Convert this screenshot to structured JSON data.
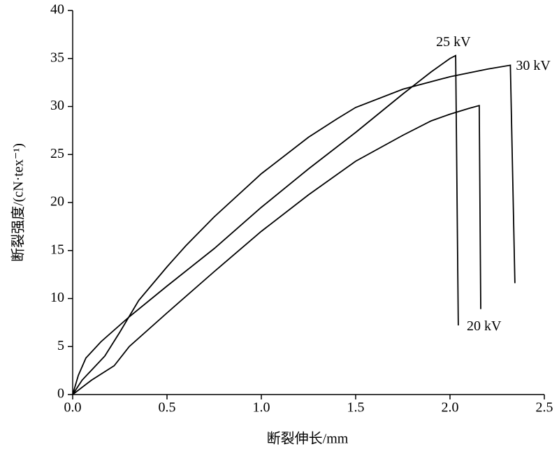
{
  "chart_data": {
    "type": "line",
    "xlabel": "断裂伸长/mm",
    "ylabel": "断裂强度/(cN·tex⁻¹)",
    "xlim": [
      0,
      2.5
    ],
    "ylim": [
      0,
      40
    ],
    "xticks": [
      {
        "value": 0,
        "label": "0.0"
      },
      0.5,
      {
        "value": 1,
        "label": "1.0"
      },
      1.5,
      {
        "value": 2,
        "label": "2.0"
      },
      2.5
    ],
    "yticks": [
      0,
      5,
      10,
      15,
      20,
      25,
      30,
      35,
      40
    ],
    "series": [
      {
        "name": "25 kV",
        "color": "#000000",
        "x": [
          0,
          0.03,
          0.07,
          0.15,
          0.3,
          0.5,
          0.75,
          1.0,
          1.25,
          1.5,
          1.75,
          1.9,
          2.0,
          2.03,
          2.044
        ],
        "values": [
          0,
          2,
          3.8,
          5.5,
          8.1,
          11.3,
          15.2,
          19.5,
          23.5,
          27.3,
          31.3,
          33.6,
          35,
          35.3,
          7.2
        ]
      },
      {
        "name": "30 kV",
        "color": "#000000",
        "x": [
          0,
          0.05,
          0.17,
          0.25,
          0.35,
          0.5,
          0.6,
          0.75,
          1.0,
          1.25,
          1.4,
          1.5,
          1.75,
          2.0,
          2.2,
          2.32,
          2.344
        ],
        "values": [
          0,
          1.5,
          4,
          6.5,
          9.8,
          13.3,
          15.5,
          18.5,
          23,
          26.8,
          28.7,
          29.9,
          31.8,
          33.1,
          33.9,
          34.3,
          11.6
        ]
      },
      {
        "name": "20 kV",
        "color": "#000000",
        "x": [
          0,
          0.1,
          0.22,
          0.3,
          0.5,
          0.75,
          1.0,
          1.25,
          1.5,
          1.75,
          1.9,
          2.0,
          2.1,
          2.155,
          2.163
        ],
        "values": [
          0,
          1.5,
          3,
          5,
          8.5,
          12.8,
          17,
          20.8,
          24.3,
          27,
          28.5,
          29.2,
          29.8,
          30.1,
          8.9
        ]
      }
    ]
  }
}
